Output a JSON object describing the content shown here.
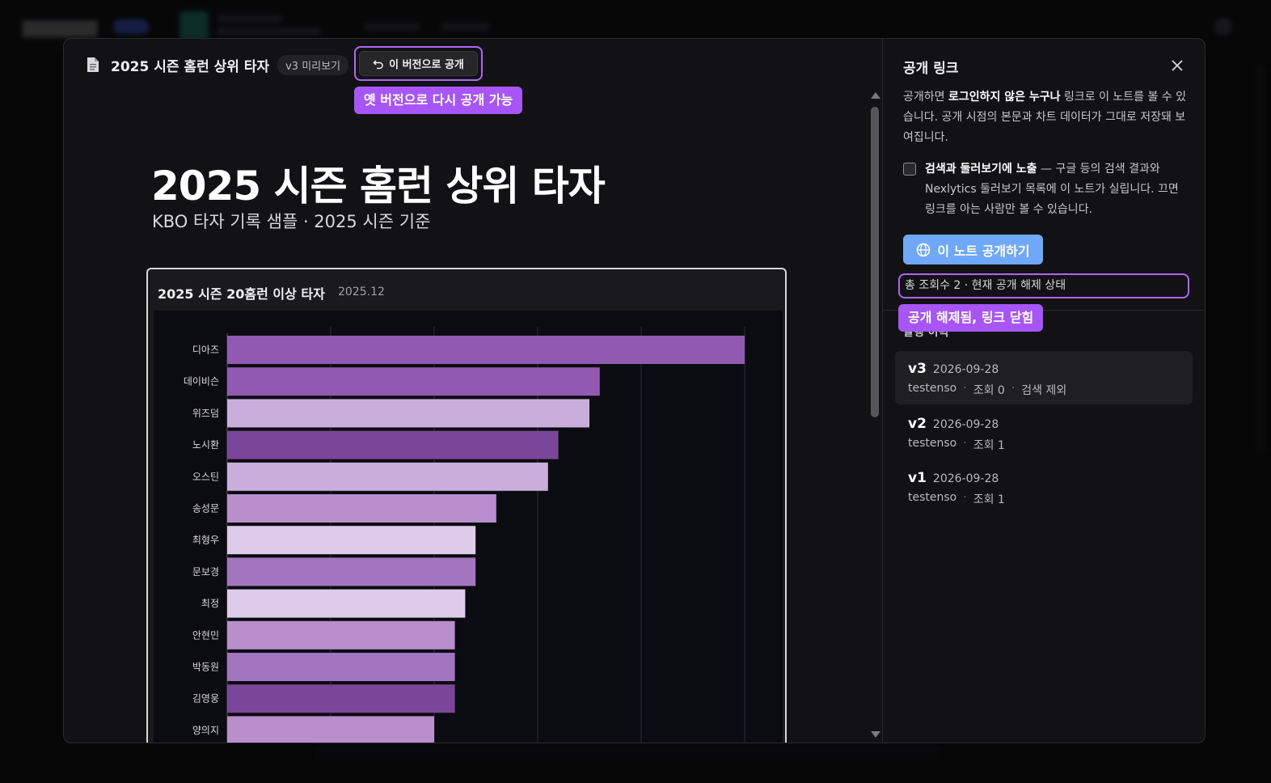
{
  "document": {
    "title": "2025 시즌 홈런 상위 타자",
    "version_chip": "v3 미리보기",
    "republish_label": "이 버전으로 공개",
    "republish_callout": "옛 버전으로 다시 공개 가능",
    "heading": "2025 시즌 홈런 상위 타자",
    "subheading": "KBO 타자 기록 샘플 · 2025 시즌 기준"
  },
  "chart_card": {
    "title": "2025 시즌 20홈런 이상 타자",
    "date": "2025.12"
  },
  "chart_data": {
    "type": "bar",
    "orientation": "horizontal",
    "categories": [
      "디아즈",
      "데이비슨",
      "위즈덤",
      "노시환",
      "오스틴",
      "송성문",
      "최형우",
      "문보경",
      "최정",
      "안현민",
      "박동원",
      "김영웅",
      "양의지"
    ],
    "values": [
      50,
      36,
      35,
      32,
      31,
      26,
      24,
      24,
      23,
      22,
      22,
      22,
      20
    ],
    "bar_colors": [
      "#9259b1",
      "#9259b1",
      "#c9aedb",
      "#7a4699",
      "#c9aedb",
      "#b88fcc",
      "#decae9",
      "#a374bf",
      "#decae9",
      "#b88fcc",
      "#a374bf",
      "#7a4699",
      "#b88fcc"
    ],
    "xlim": [
      0,
      50
    ],
    "grid": true,
    "gridline_values": [
      10,
      20,
      30,
      40,
      50
    ]
  },
  "panel": {
    "title": "공개 링크",
    "desc_prefix": "공개하면 ",
    "desc_bold": "로그인하지 않은 누구나",
    "desc_suffix": " 링크로 이 노트를 볼 수 있습니다. 공개 시점의 본문과 차트 데이터가 그대로 저장돼 보여집니다.",
    "checkbox_bold": "검색과 둘러보기에 노출",
    "checkbox_text": " — 구글 등의 검색 결과와 Nexlytics 둘러보기 목록에 이 노트가 실립니다. 끄면 링크를 아는 사람만 볼 수 있습니다.",
    "checkbox_checked": false,
    "publish_button": "이 노트 공개하기",
    "status_text": "총 조회수 2 · 현재 공개 해제 상태",
    "status_callout": "공개 해제됨, 링크 닫힘",
    "history_label": "발행 이력",
    "versions": [
      {
        "name": "v3",
        "date": "2026-09-28",
        "author": "testenso",
        "views": "조회 0",
        "extra": "검색 제외"
      },
      {
        "name": "v2",
        "date": "2026-09-28",
        "author": "testenso",
        "views": "조회 1"
      },
      {
        "name": "v1",
        "date": "2026-09-28",
        "author": "testenso",
        "views": "조회 1"
      }
    ]
  },
  "colors": {
    "accent_outline": "#b066f5",
    "callout_bg": "#a855f7",
    "publish_button_bg": "#6ea8f7"
  }
}
